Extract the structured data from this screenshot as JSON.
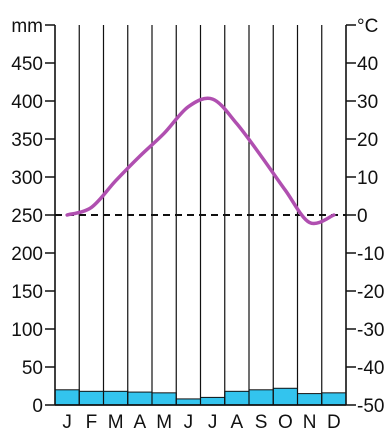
{
  "colors": {
    "precipitation": "#33c4ee",
    "temperature": "#b04fb0",
    "grid": "#111111",
    "zero_line": "#111111"
  },
  "chart_data": {
    "type": "bar",
    "title": "",
    "left_axis": {
      "unit": "mm",
      "ylim": [
        0,
        500
      ],
      "ticks": [
        0,
        50,
        100,
        150,
        200,
        250,
        300,
        350,
        400,
        450
      ]
    },
    "right_axis": {
      "unit": "°C",
      "ylim": [
        -50,
        50
      ],
      "ticks": [
        -50,
        -40,
        -30,
        -20,
        -10,
        0,
        10,
        20,
        30,
        40
      ]
    },
    "categories": [
      "J",
      "F",
      "M",
      "A",
      "M",
      "J",
      "J",
      "A",
      "S",
      "O",
      "N",
      "D"
    ],
    "grid": true,
    "zero_line": "dashed",
    "series": [
      {
        "type": "bar",
        "axis": "left",
        "values": [
          20,
          18,
          18,
          17,
          16,
          8,
          10,
          18,
          20,
          22,
          15,
          16
        ]
      },
      {
        "type": "line",
        "axis": "right",
        "values": [
          0,
          2,
          9,
          15.5,
          21.5,
          28.5,
          30.5,
          24,
          15.5,
          6.5,
          -2,
          0
        ]
      }
    ]
  }
}
